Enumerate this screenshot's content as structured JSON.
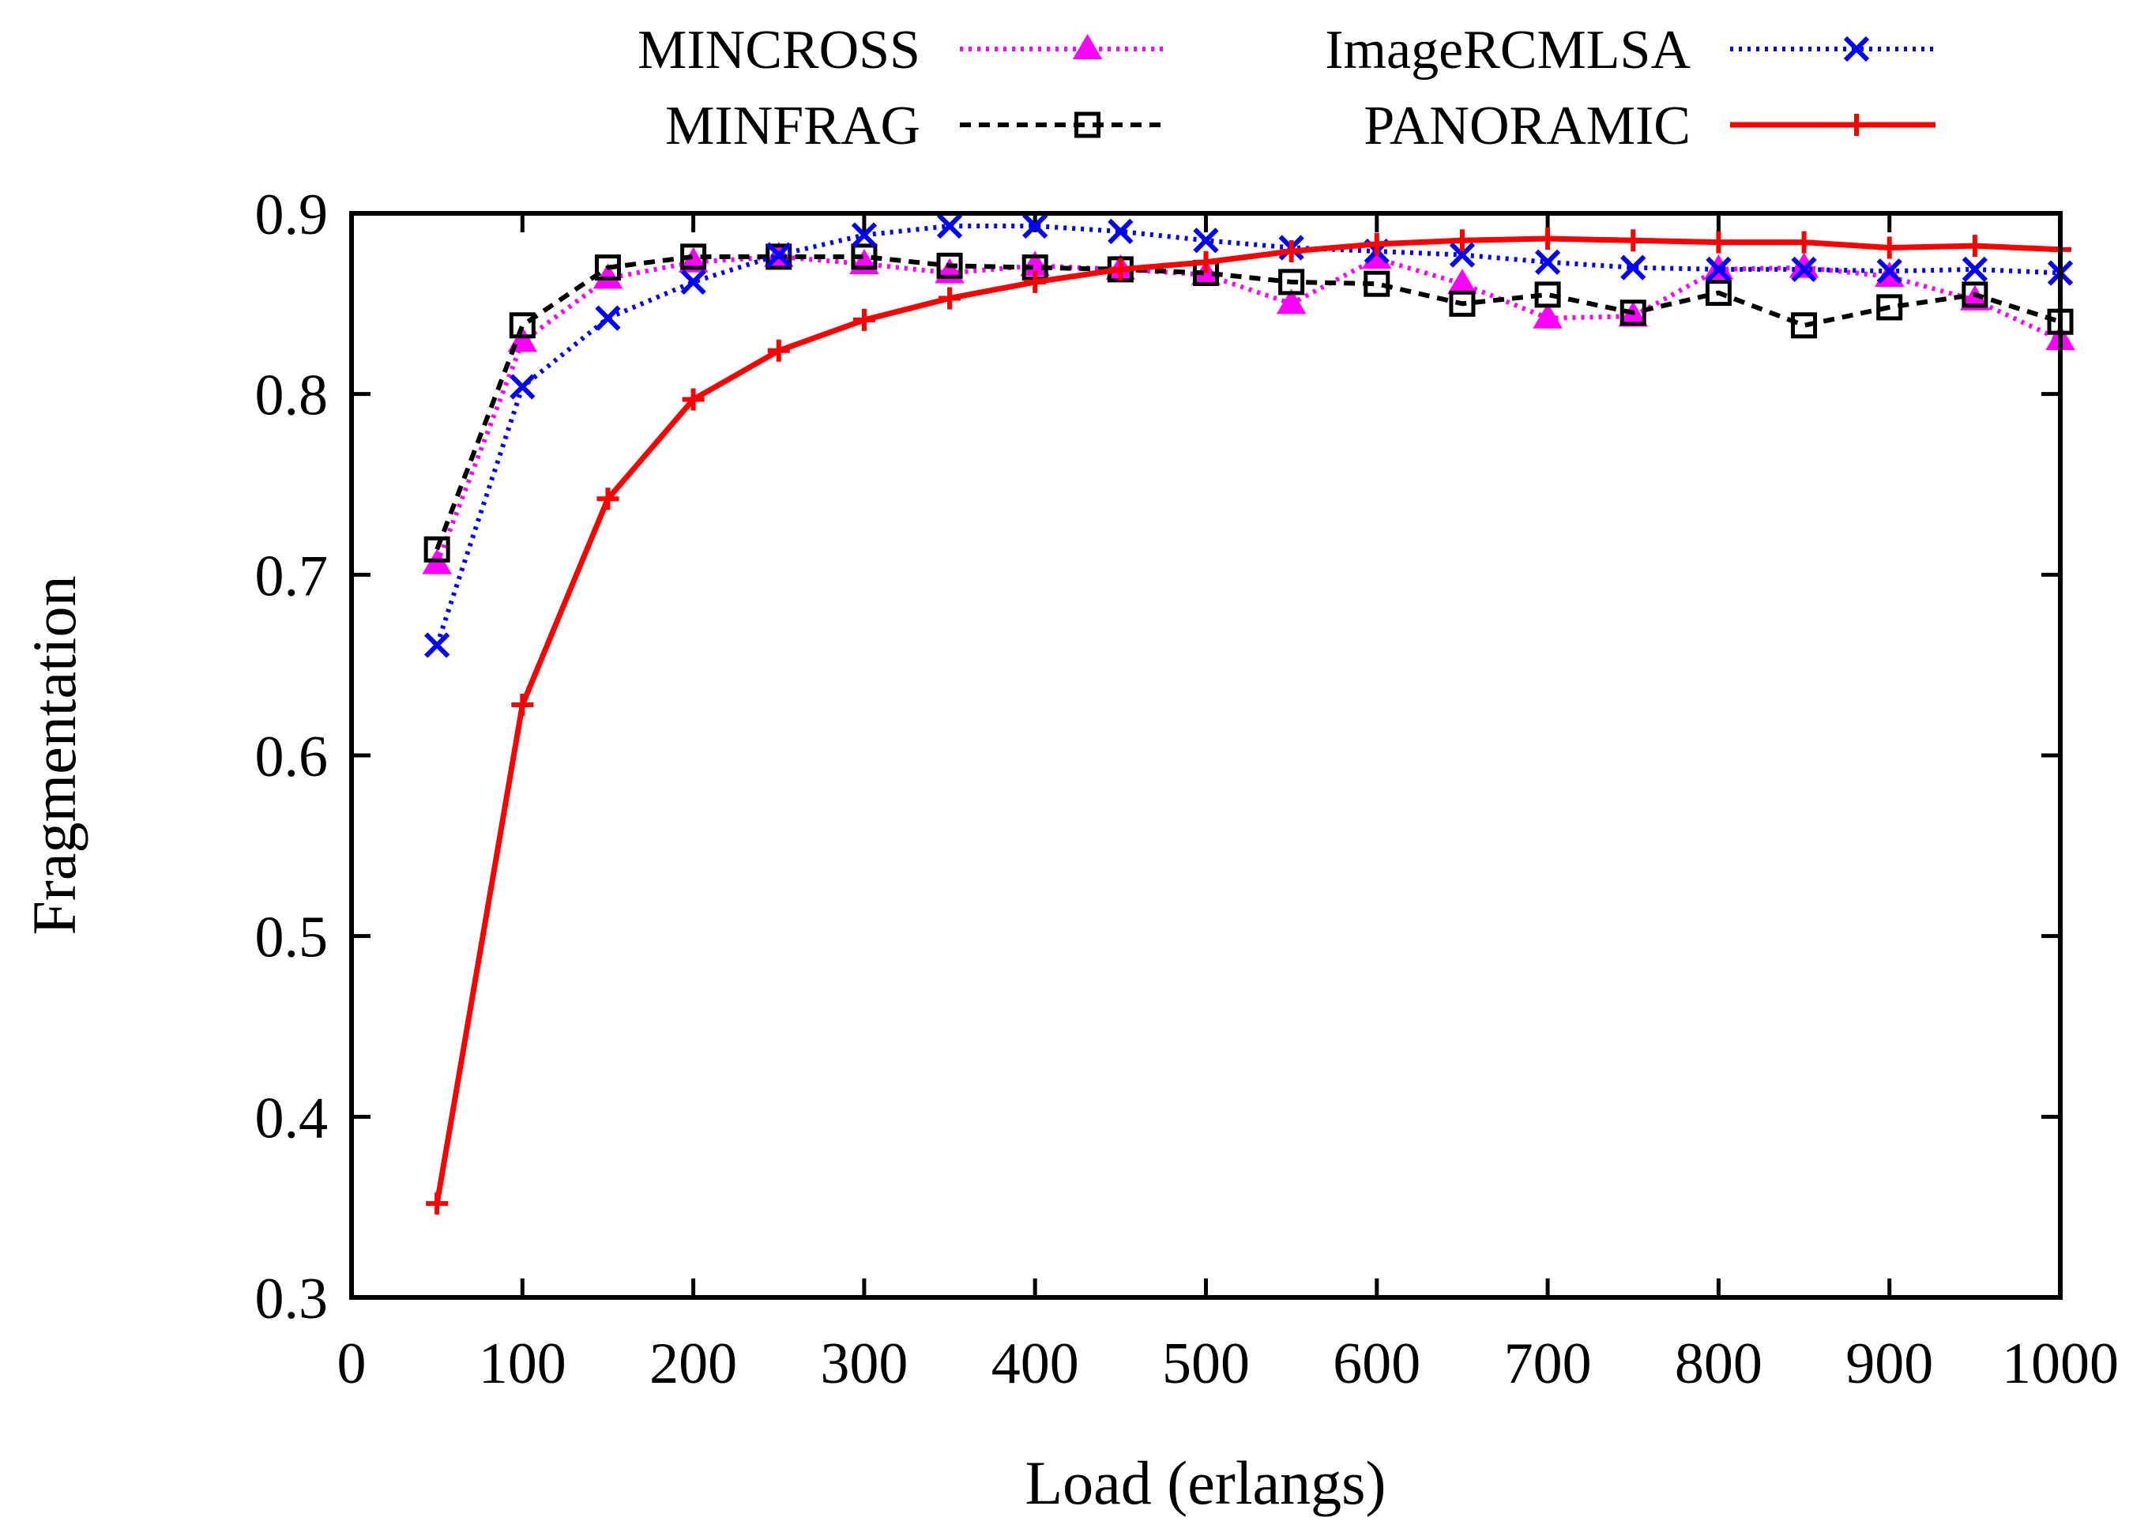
{
  "chart_data": {
    "type": "line",
    "title": "",
    "xlabel": "Load (erlangs)",
    "ylabel": "Fragmentation",
    "xlim": [
      0,
      1000
    ],
    "ylim": [
      0.3,
      0.9
    ],
    "xticks": [
      0,
      100,
      200,
      300,
      400,
      500,
      600,
      700,
      800,
      900,
      1000
    ],
    "yticks": [
      0.3,
      0.4,
      0.5,
      0.6,
      0.7,
      0.8,
      0.9
    ],
    "xtick_labels": [
      "0",
      "100",
      "200",
      "300",
      "400",
      "500",
      "600",
      "700",
      "800",
      "900",
      "1000"
    ],
    "ytick_labels": [
      "0.3",
      "0.4",
      "0.5",
      "0.6",
      "0.7",
      "0.8",
      "0.9"
    ],
    "legend_position": "top, outside plot, two columns",
    "x": [
      50,
      100,
      150,
      200,
      250,
      300,
      350,
      400,
      450,
      500,
      550,
      600,
      650,
      700,
      750,
      800,
      850,
      900,
      950,
      1000
    ],
    "series": [
      {
        "name": "MINCROSS",
        "color": "#ff00ff",
        "line_style": "dotted",
        "marker": "triangle-filled",
        "values": [
          0.706,
          0.829,
          0.864,
          0.873,
          0.876,
          0.872,
          0.867,
          0.871,
          0.869,
          0.866,
          0.85,
          0.875,
          0.861,
          0.842,
          0.843,
          0.869,
          0.87,
          0.865,
          0.852,
          0.83
        ]
      },
      {
        "name": "MINFRAG",
        "color": "#000000",
        "line_style": "dashed",
        "marker": "square-open",
        "values": [
          0.714,
          0.838,
          0.87,
          0.876,
          0.876,
          0.876,
          0.871,
          0.87,
          0.869,
          0.867,
          0.862,
          0.861,
          0.85,
          0.855,
          0.845,
          0.856,
          0.838,
          0.848,
          0.855,
          0.84
        ]
      },
      {
        "name": "ImageRCMLSA",
        "color": "#0000ff",
        "line_style": "dotted",
        "marker": "x-cross",
        "values": [
          0.661,
          0.804,
          0.842,
          0.862,
          0.877,
          0.888,
          0.893,
          0.893,
          0.89,
          0.885,
          0.881,
          0.879,
          0.877,
          0.873,
          0.87,
          0.869,
          0.869,
          0.868,
          0.869,
          0.867
        ]
      },
      {
        "name": "PANORAMIC",
        "color": "#ff0000",
        "line_style": "solid",
        "marker": "plus",
        "values": [
          0.352,
          0.628,
          0.742,
          0.797,
          0.824,
          0.841,
          0.853,
          0.862,
          0.869,
          0.873,
          0.879,
          0.883,
          0.885,
          0.886,
          0.885,
          0.884,
          0.884,
          0.881,
          0.882,
          0.88
        ]
      }
    ]
  }
}
